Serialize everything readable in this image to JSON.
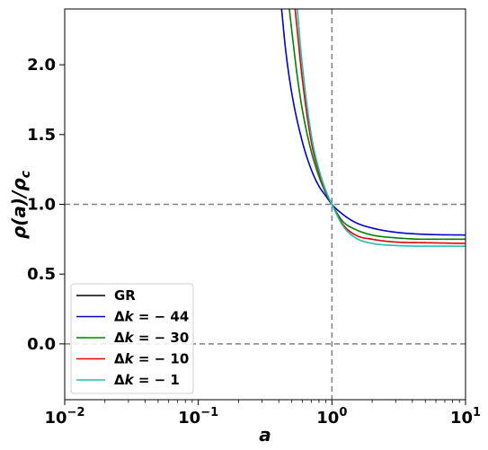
{
  "chart_data": {
    "type": "line",
    "xlabel": "a",
    "ylabel": "ρ(a)/ρ_c",
    "xscale": "log",
    "xlim": [
      0.01,
      10
    ],
    "ylim": [
      -0.4,
      2.4
    ],
    "xticks": [
      {
        "value": 0.01,
        "base": "10",
        "exp": "−2"
      },
      {
        "value": 0.1,
        "base": "10",
        "exp": "−1"
      },
      {
        "value": 1,
        "base": "10",
        "exp": "0"
      },
      {
        "value": 10,
        "base": "10",
        "exp": "1"
      }
    ],
    "yticks": [
      {
        "value": 0.0,
        "label": "0.0"
      },
      {
        "value": 0.5,
        "label": "0.5"
      },
      {
        "value": 1.0,
        "label": "1.0"
      },
      {
        "value": 1.5,
        "label": "1.5"
      },
      {
        "value": 2.0,
        "label": "2.0"
      }
    ],
    "reference_lines": {
      "horizontal": [
        0,
        1
      ],
      "vertical": [
        1
      ],
      "color": "#808080",
      "style": "dashed"
    },
    "legend": {
      "position": "lower-left"
    },
    "series": [
      {
        "name": "GR",
        "prefix": "GR",
        "value": "",
        "color": "#000000",
        "points": []
      },
      {
        "name": "Δk = −44",
        "prefix": "Δk = ",
        "value": "− 44",
        "color": "#0000cc",
        "points": [
          [
            0.42,
            2.4
          ],
          [
            0.45,
            2.11
          ],
          [
            0.5,
            1.8
          ],
          [
            0.6,
            1.45
          ],
          [
            0.7,
            1.25
          ],
          [
            0.8,
            1.13
          ],
          [
            0.9,
            1.06
          ],
          [
            1.0,
            1.0
          ],
          [
            1.2,
            0.93
          ],
          [
            1.5,
            0.87
          ],
          [
            2.0,
            0.83
          ],
          [
            3.0,
            0.8
          ],
          [
            5.0,
            0.785
          ],
          [
            10.0,
            0.78
          ]
        ]
      },
      {
        "name": "Δk = −30",
        "prefix": "Δk = ",
        "value": "− 30",
        "color": "#008000",
        "points": [
          [
            0.48,
            2.4
          ],
          [
            0.5,
            2.25
          ],
          [
            0.55,
            1.92
          ],
          [
            0.6,
            1.68
          ],
          [
            0.7,
            1.38
          ],
          [
            0.8,
            1.2
          ],
          [
            0.9,
            1.08
          ],
          [
            1.0,
            1.0
          ],
          [
            1.2,
            0.88
          ],
          [
            1.5,
            0.82
          ],
          [
            2.0,
            0.78
          ],
          [
            3.0,
            0.76
          ],
          [
            5.0,
            0.75
          ],
          [
            10.0,
            0.75
          ]
        ]
      },
      {
        "name": "Δk = −10",
        "prefix": "Δk = ",
        "value": "− 10",
        "color": "#e00000",
        "points": [
          [
            0.53,
            2.4
          ],
          [
            0.55,
            2.25
          ],
          [
            0.6,
            1.9
          ],
          [
            0.7,
            1.45
          ],
          [
            0.8,
            1.23
          ],
          [
            0.9,
            1.09
          ],
          [
            1.0,
            1.0
          ],
          [
            1.2,
            0.86
          ],
          [
            1.5,
            0.78
          ],
          [
            2.0,
            0.75
          ],
          [
            3.0,
            0.73
          ],
          [
            5.0,
            0.725
          ],
          [
            10.0,
            0.72
          ]
        ]
      },
      {
        "name": "Δk = −1",
        "prefix": "Δk = ",
        "value": "− 1",
        "color": "#20c0b0",
        "points": [
          [
            0.55,
            2.4
          ],
          [
            0.6,
            2.0
          ],
          [
            0.7,
            1.5
          ],
          [
            0.8,
            1.25
          ],
          [
            0.9,
            1.1
          ],
          [
            1.0,
            1.0
          ],
          [
            1.2,
            0.85
          ],
          [
            1.5,
            0.76
          ],
          [
            2.0,
            0.72
          ],
          [
            3.0,
            0.705
          ],
          [
            5.0,
            0.7
          ],
          [
            10.0,
            0.7
          ]
        ]
      }
    ]
  }
}
